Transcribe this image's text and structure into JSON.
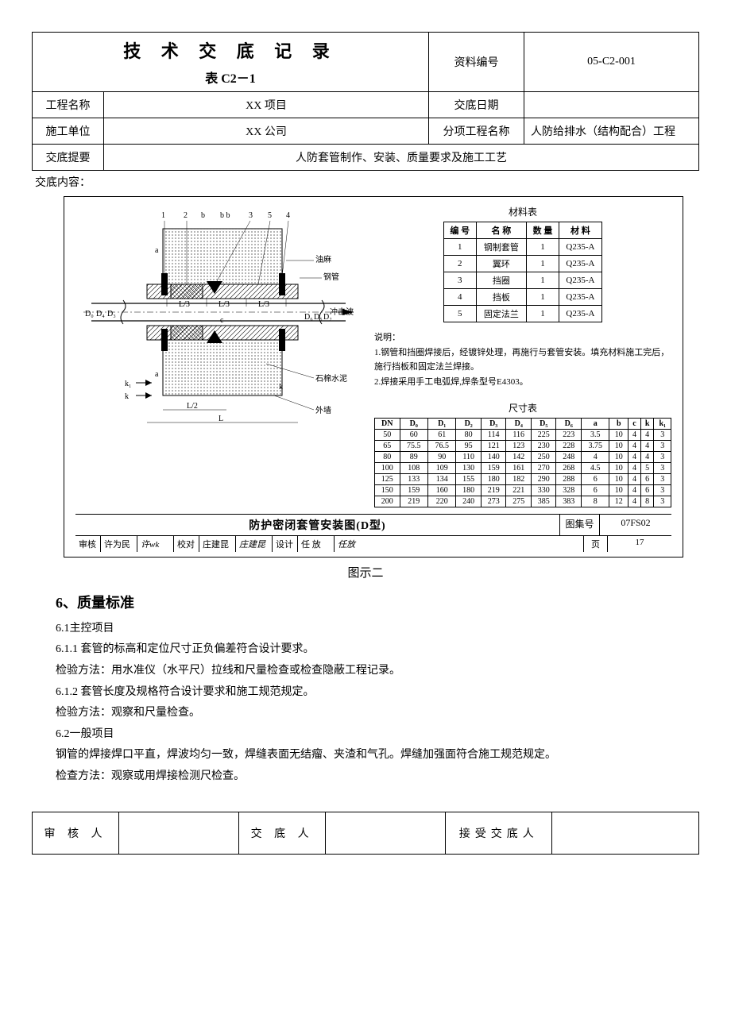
{
  "header": {
    "title": "技 术 交 底 记 录",
    "subtitle": "表 C2－1",
    "doc_no_label": "资料编号",
    "doc_no": "05-C2-001",
    "project_label": "工程名称",
    "project": "XX 项目",
    "date_label": "交底日期",
    "date": "",
    "unit_label": "施工单位",
    "unit": "XX 公司",
    "subitem_label": "分项工程名称",
    "subitem": "人防给排水（结构配合）工程",
    "summary_label": "交底提要",
    "summary": "人防套管制作、安装、质量要求及施工工艺",
    "content_label": "交底内容："
  },
  "diagram": {
    "annotations": {
      "num1": "1",
      "num2": "2",
      "num3": "3",
      "num4": "4",
      "num5": "5",
      "b": "b",
      "bb": "b  b",
      "youma": "油麻",
      "gangguan": "钢管",
      "chongjibo": "冲击波",
      "l3a": "L/3",
      "l3b": "L/3",
      "l3c": "L/3",
      "l2": "L/2",
      "L": "L",
      "c": "c",
      "a": "a",
      "k1": "k₁",
      "k": "k",
      "shimian": "石棉水泥",
      "waiqiang": "外墙",
      "d0": "D₀",
      "d1": "D₁",
      "d2": "D₂",
      "d3": "D₃",
      "d4": "D₄",
      "d5": "D₅",
      "d6": "D₆"
    },
    "material_table": {
      "title": "材料表",
      "cols": [
        "编 号",
        "名 称",
        "数 量",
        "材 料"
      ],
      "rows": [
        [
          "1",
          "钢制套管",
          "1",
          "Q235-A"
        ],
        [
          "2",
          "翼环",
          "1",
          "Q235-A"
        ],
        [
          "3",
          "挡圈",
          "1",
          "Q235-A"
        ],
        [
          "4",
          "挡板",
          "1",
          "Q235-A"
        ],
        [
          "5",
          "固定法兰",
          "1",
          "Q235-A"
        ]
      ]
    },
    "notes": {
      "label": "说明：",
      "n1": "1.钢管和挡圈焊接后，经镀锌处理，再施行与套管安装。填充材料施工完后，施行挡板和固定法兰焊接。",
      "n2": "2.焊接采用手工电弧焊,焊条型号E4303。"
    },
    "dim_table": {
      "title": "尺寸表",
      "cols": [
        "DN",
        "D₀",
        "D₁",
        "D₂",
        "D₃",
        "D₄",
        "D₅",
        "D₆",
        "a",
        "b",
        "c",
        "k",
        "k₁"
      ],
      "rows": [
        [
          "50",
          "60",
          "61",
          "80",
          "114",
          "116",
          "225",
          "223",
          "3.5",
          "10",
          "4",
          "4",
          "3"
        ],
        [
          "65",
          "75.5",
          "76.5",
          "95",
          "121",
          "123",
          "230",
          "228",
          "3.75",
          "10",
          "4",
          "4",
          "3"
        ],
        [
          "80",
          "89",
          "90",
          "110",
          "140",
          "142",
          "250",
          "248",
          "4",
          "10",
          "4",
          "4",
          "3"
        ],
        [
          "100",
          "108",
          "109",
          "130",
          "159",
          "161",
          "270",
          "268",
          "4.5",
          "10",
          "4",
          "5",
          "3"
        ],
        [
          "125",
          "133",
          "134",
          "155",
          "180",
          "182",
          "290",
          "288",
          "6",
          "10",
          "4",
          "6",
          "3"
        ],
        [
          "150",
          "159",
          "160",
          "180",
          "219",
          "221",
          "330",
          "328",
          "6",
          "10",
          "4",
          "6",
          "3"
        ],
        [
          "200",
          "219",
          "220",
          "240",
          "273",
          "275",
          "385",
          "383",
          "8",
          "12",
          "4",
          "8",
          "3"
        ]
      ]
    },
    "footer": {
      "main_title": "防护密闭套管安装图(D型)",
      "tuji_label": "图集号",
      "tuji": "07FS02",
      "shenhe_label": "审核",
      "shenhe_name": "许为民",
      "shenhe_sig": "许wk",
      "jiaodui_label": "校对",
      "jiaodui_name": "庄建昆",
      "jiaodui_sig": "庄建昆",
      "sheji_label": "设计",
      "sheji_name": "任 放",
      "sheji_sig": "任放",
      "page_label": "页",
      "page": "17"
    },
    "caption": "图示二"
  },
  "body": {
    "section_no": "6、质量标准",
    "p1": "6.1主控项目",
    "p2": "6.1.1 套管的标高和定位尺寸正负偏差符合设计要求。",
    "p3": "检验方法：用水准仪（水平尺）拉线和尺量检查或检查隐蔽工程记录。",
    "p4": "6.1.2 套管长度及规格符合设计要求和施工规范规定。",
    "p5": "检验方法：观察和尺量检查。",
    "p6": "6.2一般项目",
    "p7": "钢管的焊接焊口平直，焊波均匀一致，焊缝表面无结瘤、夹渣和气孔。焊缝加强面符合施工规范规定。",
    "p8": "检查方法：观察或用焊接检测尺检查。"
  },
  "signoff": {
    "reviewer": "审 核 人",
    "presenter": "交 底 人",
    "receiver": "接受交底人"
  },
  "style": {
    "border_color": "#000000",
    "bg": "#ffffff",
    "text": "#000000"
  }
}
